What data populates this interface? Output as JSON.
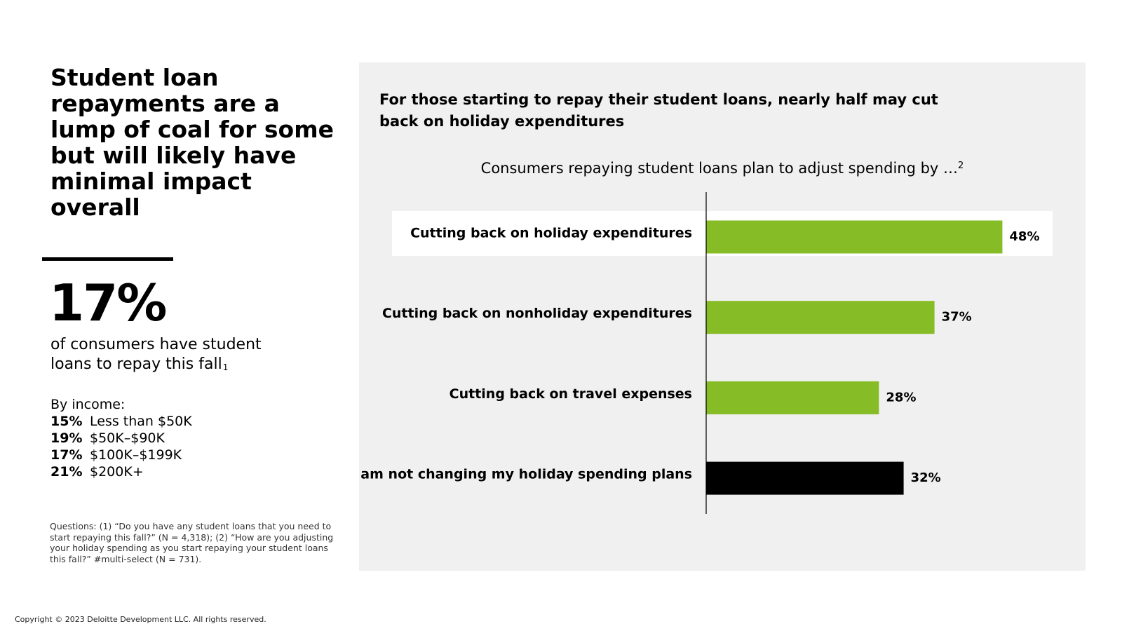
{
  "left": {
    "headline": "Student loan repayments are a lump of coal for some but will likely have minimal impact overall",
    "stat_value": "17%",
    "stat_description": "of consumers have student loans to repay this fall",
    "stat_footnote_ref": "1",
    "income_heading": "By income:",
    "income_rows": [
      {
        "pct": "15%",
        "label": "Less than $50K"
      },
      {
        "pct": "19%",
        "label": "$50K–$90K"
      },
      {
        "pct": "17%",
        "label": "$100K–$199K"
      },
      {
        "pct": "21%",
        "label": "$200K+"
      }
    ],
    "footnote": "Questions: (1) “Do you have any student loans that you need to start repaying this fall?” (N = 4,318); (2) “How are you adjusting your holiday spending as you start repaying your student loans this fall?” #multi-select (N = 731)."
  },
  "copyright": "Copyright © 2023 Deloitte Development LLC. All rights reserved.",
  "panel": {
    "title": "For those starting to repay their student loans, nearly half may cut back on holiday expenditures",
    "colors": {
      "background": "#f0f0f0",
      "highlight": "#ffffff",
      "green": "#86bc25",
      "black": "#000000"
    }
  },
  "chart_data": {
    "type": "bar",
    "orientation": "horizontal",
    "title": "Consumers repaying student loans plan to adjust spending by …",
    "title_footnote_ref": "2",
    "categories": [
      "Cutting back on holiday expenditures",
      "Cutting back on nonholiday expenditures",
      "Cutting back on travel expenses",
      "I am not changing my holiday spending plans"
    ],
    "values": [
      48,
      37,
      28,
      32
    ],
    "value_labels": [
      "48%",
      "37%",
      "28%",
      "32%"
    ],
    "bar_colors": [
      "#86bc25",
      "#86bc25",
      "#86bc25",
      "#000000"
    ],
    "highlighted_category_index": 0,
    "unit": "%",
    "xlim": [
      0,
      100
    ],
    "grid": false,
    "legend": "none"
  }
}
